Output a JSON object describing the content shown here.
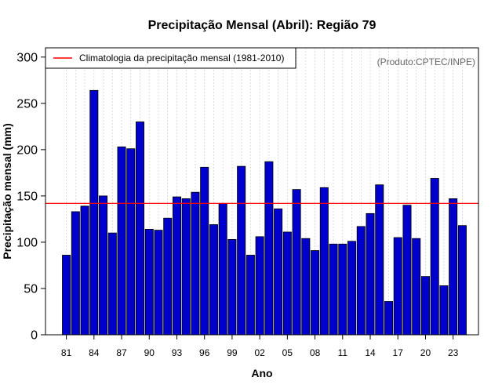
{
  "chart_data": {
    "type": "bar",
    "title": "Precipitação Mensal (Abril): Região 79",
    "xlabel": "Ano",
    "ylabel": "Precipitação mensal (mm)",
    "ylim": [
      0,
      310
    ],
    "yticks": [
      0,
      50,
      100,
      150,
      200,
      250,
      300
    ],
    "grid": "vertical dotted",
    "categories": [
      "1981",
      "1982",
      "1983",
      "1984",
      "1985",
      "1986",
      "1987",
      "1988",
      "1989",
      "1990",
      "1991",
      "1992",
      "1993",
      "1994",
      "1995",
      "1996",
      "1997",
      "1998",
      "1999",
      "2000",
      "2001",
      "2002",
      "2003",
      "2004",
      "2005",
      "2006",
      "2007",
      "2008",
      "2009",
      "2010",
      "2011",
      "2012",
      "2013",
      "2014",
      "2015",
      "2016",
      "2017",
      "2018",
      "2019",
      "2020",
      "2021",
      "2022",
      "2023",
      "2024"
    ],
    "xtick_labels": [
      {
        "index": 0,
        "label": "81"
      },
      {
        "index": 3,
        "label": "84"
      },
      {
        "index": 6,
        "label": "87"
      },
      {
        "index": 9,
        "label": "90"
      },
      {
        "index": 12,
        "label": "93"
      },
      {
        "index": 15,
        "label": "96"
      },
      {
        "index": 18,
        "label": "99"
      },
      {
        "index": 21,
        "label": "02"
      },
      {
        "index": 24,
        "label": "05"
      },
      {
        "index": 27,
        "label": "08"
      },
      {
        "index": 30,
        "label": "11"
      },
      {
        "index": 33,
        "label": "14"
      },
      {
        "index": 36,
        "label": "17"
      },
      {
        "index": 39,
        "label": "20"
      },
      {
        "index": 42,
        "label": "23"
      }
    ],
    "values": [
      86,
      133,
      139,
      264,
      150,
      110,
      203,
      201,
      230,
      114,
      113,
      126,
      149,
      147,
      154,
      181,
      119,
      142,
      103,
      182,
      86,
      106,
      187,
      136,
      111,
      157,
      104,
      91,
      159,
      98,
      98,
      101,
      117,
      131,
      162,
      36,
      105,
      140,
      104,
      63,
      169,
      53,
      147,
      118
    ],
    "bar_color": "#0000cc",
    "climatology": {
      "value": 142,
      "color": "#ff0000",
      "label": "Climatologia da precipitação mensal (1981-2010)"
    },
    "legend_position": "top-left",
    "credit": "(Produto:CPTEC/INPE)"
  }
}
